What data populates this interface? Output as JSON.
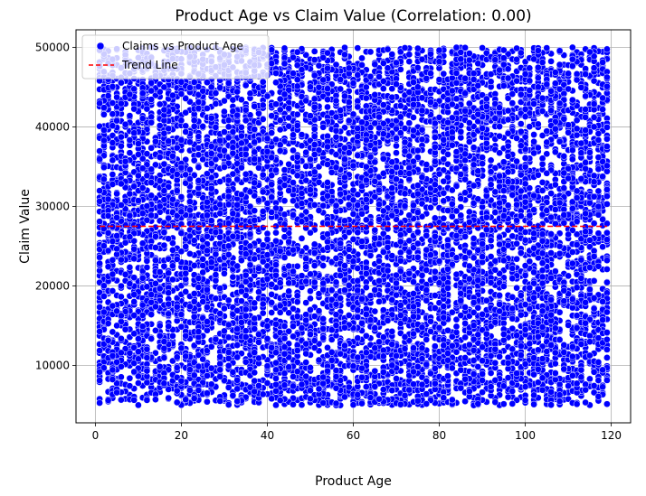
{
  "chart_data": {
    "type": "scatter",
    "title": "Product Age vs Claim Value (Correlation: 0.00)",
    "xlabel": "Product Age",
    "ylabel": "Claim Value",
    "xlim": [
      -4.5,
      124.5
    ],
    "ylim": [
      2800,
      52200
    ],
    "xticks": [
      0,
      20,
      40,
      60,
      80,
      100,
      120
    ],
    "yticks": [
      10000,
      20000,
      30000,
      40000,
      50000
    ],
    "grid": true,
    "legend_position": "top-left",
    "points_x_range": [
      1,
      119
    ],
    "points_y_range": [
      5000,
      50000
    ],
    "series": [
      {
        "name": "Claims vs Product Age",
        "kind": "scatter",
        "color": "#0000ff",
        "edge_color": "#ffffff"
      },
      {
        "name": "Trend Line",
        "kind": "line",
        "style": "dashed",
        "color": "#ff0000",
        "x": [
          1,
          119
        ],
        "y": [
          27500,
          27500
        ]
      }
    ]
  }
}
